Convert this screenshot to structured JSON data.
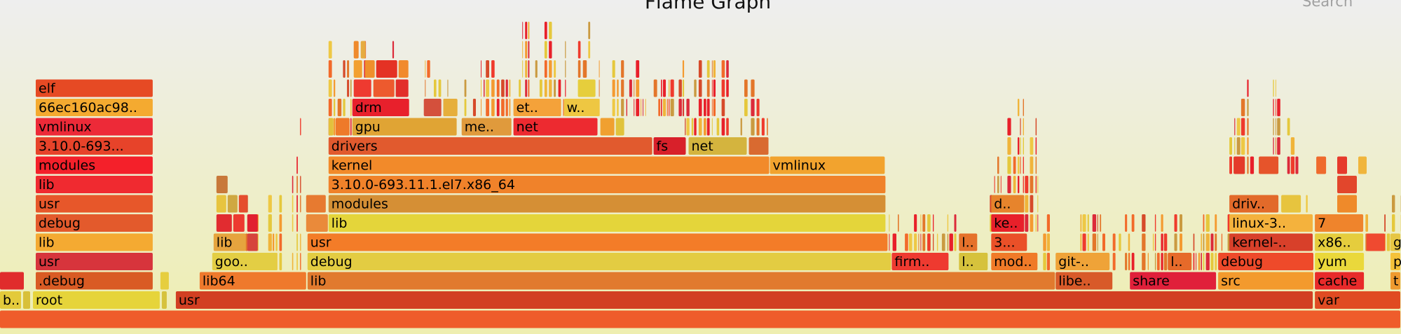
{
  "title": "Flame Graph",
  "search_label": "Search",
  "chart_data": {
    "type": "flamegraph",
    "note_units": "x and w are fractions of the total sample width; level 0 is the bottom frame",
    "frames": [
      {
        "l": 0,
        "x": 0.0,
        "w": 1.0,
        "n": "",
        "c": "#ef5c2b"
      },
      {
        "l": 1,
        "x": 0.0,
        "w": 0.0155,
        "n": "b..",
        "c": "#e3ca3b"
      },
      {
        "l": 1,
        "x": 0.0165,
        "w": 0.0055,
        "n": "",
        "c": "#d8c03a"
      },
      {
        "l": 1,
        "x": 0.0235,
        "w": 0.091,
        "n": "root",
        "c": "#e6d43a"
      },
      {
        "l": 1,
        "x": 0.1155,
        "w": 0.004,
        "n": "",
        "c": "#d6c23c"
      },
      {
        "l": 1,
        "x": 0.1255,
        "w": 0.812,
        "n": "usr",
        "c": "#d23f22"
      },
      {
        "l": 1,
        "x": 0.9385,
        "w": 0.0615,
        "n": "var",
        "c": "#e04b22"
      },
      {
        "l": 2,
        "x": 0.0,
        "w": 0.0175,
        "n": "",
        "c": "#e02c2c"
      },
      {
        "l": 2,
        "x": 0.0255,
        "w": 0.084,
        "n": ".debug",
        "c": "#d95b24"
      },
      {
        "l": 2,
        "x": 0.1145,
        "w": 0.0065,
        "n": "",
        "c": "#e6ce3f"
      },
      {
        "l": 2,
        "x": 0.1425,
        "w": 0.0765,
        "n": "lib64",
        "c": "#ef792c"
      },
      {
        "l": 2,
        "x": 0.2195,
        "w": 0.534,
        "n": "lib",
        "c": "#e17a2e"
      },
      {
        "l": 2,
        "x": 0.7535,
        "w": 0.041,
        "n": "libe..",
        "c": "#d85a29"
      },
      {
        "l": 2,
        "x": 0.8065,
        "w": 0.062,
        "n": "share",
        "c": "#e0203a"
      },
      {
        "l": 2,
        "x": 0.8695,
        "w": 0.0685,
        "n": "src",
        "c": "#f39a2d"
      },
      {
        "l": 2,
        "x": 0.9385,
        "w": 0.0355,
        "n": "cache",
        "c": "#e82a2a"
      },
      {
        "l": 2,
        "x": 0.9925,
        "w": 0.0075,
        "n": "t",
        "c": "#ef9a2f"
      },
      {
        "l": 3,
        "x": 0.0255,
        "w": 0.084,
        "n": "usr",
        "c": "#d7343c"
      },
      {
        "l": 3,
        "x": 0.1515,
        "w": 0.0465,
        "n": "goo..",
        "c": "#e3ce44"
      },
      {
        "l": 3,
        "x": 0.2195,
        "w": 0.417,
        "n": "debug",
        "c": "#e3cc42"
      },
      {
        "l": 3,
        "x": 0.6365,
        "w": 0.041,
        "n": "firm..",
        "c": "#ee3a30"
      },
      {
        "l": 3,
        "x": 0.6845,
        "w": 0.021,
        "n": "l..",
        "c": "#d6c23c"
      },
      {
        "l": 3,
        "x": 0.7075,
        "w": 0.0335,
        "n": "mod..",
        "c": "#f07a28"
      },
      {
        "l": 3,
        "x": 0.7535,
        "w": 0.039,
        "n": "git-..",
        "c": "#efa338"
      },
      {
        "l": 3,
        "x": 0.8335,
        "w": 0.0175,
        "n": "l..",
        "c": "#e66a2a"
      },
      {
        "l": 3,
        "x": 0.8695,
        "w": 0.0685,
        "n": "debug",
        "c": "#ee4a2a"
      },
      {
        "l": 3,
        "x": 0.9385,
        "w": 0.0355,
        "n": "yum",
        "c": "#ead83b"
      },
      {
        "l": 3,
        "x": 0.9925,
        "w": 0.0075,
        "n": "p",
        "c": "#f5c23a"
      },
      {
        "l": 4,
        "x": 0.0255,
        "w": 0.084,
        "n": "lib",
        "c": "#f4aa32"
      },
      {
        "l": 4,
        "x": 0.1525,
        "w": 0.0235,
        "n": "lib",
        "c": "#e6a43e"
      },
      {
        "l": 4,
        "x": 0.1765,
        "w": 0.008,
        "n": "",
        "c": "#d6443c"
      },
      {
        "l": 4,
        "x": 0.2195,
        "w": 0.4145,
        "n": "usr",
        "c": "#f37c28"
      },
      {
        "l": 4,
        "x": 0.6845,
        "w": 0.0135,
        "n": "l..",
        "c": "#e5712b"
      },
      {
        "l": 4,
        "x": 0.7075,
        "w": 0.026,
        "n": "3...",
        "c": "#ea5028"
      },
      {
        "l": 4,
        "x": 0.8775,
        "w": 0.06,
        "n": "kernel-..",
        "c": "#d8402a"
      },
      {
        "l": 4,
        "x": 0.9385,
        "w": 0.035,
        "n": "x86..",
        "c": "#e5cd3d"
      },
      {
        "l": 4,
        "x": 0.9755,
        "w": 0.0135,
        "n": "",
        "c": "#ef4a30"
      },
      {
        "l": 4,
        "x": 0.9925,
        "w": 0.0075,
        "n": "g",
        "c": "#e6c644"
      },
      {
        "l": 5,
        "x": 0.0255,
        "w": 0.084,
        "n": "debug",
        "c": "#e35a2c"
      },
      {
        "l": 5,
        "x": 0.1545,
        "w": 0.0115,
        "n": "",
        "c": "#e12c30"
      },
      {
        "l": 5,
        "x": 0.1665,
        "w": 0.0085,
        "n": "",
        "c": "#ed3a30"
      },
      {
        "l": 5,
        "x": 0.1765,
        "w": 0.008,
        "n": "",
        "c": "#e12030"
      },
      {
        "l": 5,
        "x": 0.2185,
        "w": 0.016,
        "n": "",
        "c": "#ea8a3a"
      },
      {
        "l": 5,
        "x": 0.2345,
        "w": 0.398,
        "n": "lib",
        "c": "#e4d53a"
      },
      {
        "l": 5,
        "x": 0.7075,
        "w": 0.024,
        "n": "ke..",
        "c": "#e8202a"
      },
      {
        "l": 5,
        "x": 0.8775,
        "w": 0.06,
        "n": "linux-3..",
        "c": "#f4b23d"
      },
      {
        "l": 5,
        "x": 0.9385,
        "w": 0.035,
        "n": "7",
        "c": "#ef842c"
      },
      {
        "l": 6,
        "x": 0.0255,
        "w": 0.084,
        "n": "usr",
        "c": "#e7572a"
      },
      {
        "l": 6,
        "x": 0.1545,
        "w": 0.0075,
        "n": "",
        "c": "#e7c43f"
      },
      {
        "l": 6,
        "x": 0.1625,
        "w": 0.0075,
        "n": "",
        "c": "#cfa841"
      },
      {
        "l": 6,
        "x": 0.1705,
        "w": 0.0065,
        "n": "",
        "c": "#e54d2d"
      },
      {
        "l": 6,
        "x": 0.2185,
        "w": 0.0145,
        "n": "",
        "c": "#e77a30"
      },
      {
        "l": 6,
        "x": 0.2345,
        "w": 0.398,
        "n": "modules",
        "c": "#d58f35"
      },
      {
        "l": 6,
        "x": 0.7075,
        "w": 0.024,
        "n": "d..",
        "c": "#e7842c"
      },
      {
        "l": 6,
        "x": 0.8775,
        "w": 0.0355,
        "n": "driv..",
        "c": "#e26a2a"
      },
      {
        "l": 6,
        "x": 0.9145,
        "w": 0.0145,
        "n": "",
        "c": "#e7c43e"
      },
      {
        "l": 6,
        "x": 0.9545,
        "w": 0.0145,
        "n": "",
        "c": "#ef8a2a"
      },
      {
        "l": 7,
        "x": 0.0255,
        "w": 0.084,
        "n": "lib",
        "c": "#f02a30"
      },
      {
        "l": 7,
        "x": 0.1545,
        "w": 0.0085,
        "n": "",
        "c": "#c8783a"
      },
      {
        "l": 7,
        "x": 0.2345,
        "w": 0.398,
        "n": "3.10.0-693.11.1.el7.x86_64",
        "c": "#f0822a"
      },
      {
        "l": 7,
        "x": 0.9545,
        "w": 0.0145,
        "n": "",
        "c": "#e2462c"
      },
      {
        "l": 8,
        "x": 0.0255,
        "w": 0.084,
        "n": "modules",
        "c": "#f4202a"
      },
      {
        "l": 8,
        "x": 0.2345,
        "w": 0.315,
        "n": "kernel",
        "c": "#f28a2a"
      },
      {
        "l": 8,
        "x": 0.5495,
        "w": 0.0825,
        "n": "vmlinux",
        "c": "#f2a32e"
      },
      {
        "l": 8,
        "x": 0.8805,
        "w": 0.0085,
        "n": "",
        "c": "#e43a2a"
      },
      {
        "l": 8,
        "x": 0.8985,
        "w": 0.0145,
        "n": "",
        "c": "#e6542b"
      },
      {
        "l": 8,
        "x": 0.9395,
        "w": 0.0075,
        "n": "",
        "c": "#ef6a2d"
      },
      {
        "l": 8,
        "x": 0.9545,
        "w": 0.0075,
        "n": "",
        "c": "#e63a2c"
      },
      {
        "l": 8,
        "x": 0.9695,
        "w": 0.0065,
        "n": "",
        "c": "#f0b53c"
      },
      {
        "l": 9,
        "x": 0.0255,
        "w": 0.084,
        "n": "3.10.0-693...",
        "c": "#e7432a"
      },
      {
        "l": 9,
        "x": 0.2345,
        "w": 0.2315,
        "n": "drivers",
        "c": "#e15a2e"
      },
      {
        "l": 9,
        "x": 0.4665,
        "w": 0.0235,
        "n": "fs",
        "c": "#d8202a"
      },
      {
        "l": 9,
        "x": 0.4915,
        "w": 0.042,
        "n": "net",
        "c": "#d4b43e"
      },
      {
        "l": 9,
        "x": 0.5345,
        "w": 0.0145,
        "n": "",
        "c": "#d96a30"
      },
      {
        "l": 10,
        "x": 0.0255,
        "w": 0.084,
        "n": "vmlinux",
        "c": "#ed2a38"
      },
      {
        "l": 10,
        "x": 0.2345,
        "w": 0.004,
        "n": "",
        "c": "#e3c03c"
      },
      {
        "l": 10,
        "x": 0.2395,
        "w": 0.0105,
        "n": "",
        "c": "#ee7a2a"
      },
      {
        "l": 10,
        "x": 0.2515,
        "w": 0.075,
        "n": "gpu",
        "c": "#e0a434"
      },
      {
        "l": 10,
        "x": 0.3295,
        "w": 0.036,
        "n": "me..",
        "c": "#e09a3c"
      },
      {
        "l": 10,
        "x": 0.3665,
        "w": 0.0605,
        "n": "net",
        "c": "#ed2a30"
      },
      {
        "l": 10,
        "x": 0.4285,
        "w": 0.0105,
        "n": "",
        "c": "#f0a030"
      },
      {
        "l": 10,
        "x": 0.4395,
        "w": 0.0065,
        "n": "",
        "c": "#e0c33c"
      },
      {
        "l": 11,
        "x": 0.0255,
        "w": 0.084,
        "n": "66ec160ac98..",
        "c": "#f4aa30"
      },
      {
        "l": 11,
        "x": 0.2515,
        "w": 0.041,
        "n": "drm",
        "c": "#e8202c"
      },
      {
        "l": 11,
        "x": 0.3025,
        "w": 0.013,
        "n": "",
        "c": "#d4503c"
      },
      {
        "l": 11,
        "x": 0.3165,
        "w": 0.0105,
        "n": "",
        "c": "#e6af3b"
      },
      {
        "l": 11,
        "x": 0.3665,
        "w": 0.0345,
        "n": "et..",
        "c": "#f4a23a"
      },
      {
        "l": 11,
        "x": 0.4025,
        "w": 0.026,
        "n": "w..",
        "c": "#eec742"
      },
      {
        "l": 12,
        "x": 0.0255,
        "w": 0.084,
        "n": "elf",
        "c": "#e64a24"
      },
      {
        "l": 12,
        "x": 0.2525,
        "w": 0.013,
        "n": "",
        "c": "#ee3a30"
      },
      {
        "l": 12,
        "x": 0.2665,
        "w": 0.0155,
        "n": "",
        "c": "#ed5a2e"
      },
      {
        "l": 12,
        "x": 0.2825,
        "w": 0.0095,
        "n": "",
        "c": "#e22e2a"
      },
      {
        "l": 12,
        "x": 0.4125,
        "w": 0.013,
        "n": "",
        "c": "#e6ce3c"
      },
      {
        "l": 13,
        "x": 0.2525,
        "w": 0.0065,
        "n": "",
        "c": "#f2a030"
      },
      {
        "l": 13,
        "x": 0.2605,
        "w": 0.0075,
        "n": "",
        "c": "#ef8f2c"
      },
      {
        "l": 13,
        "x": 0.2685,
        "w": 0.0155,
        "n": "",
        "c": "#e43224"
      },
      {
        "l": 13,
        "x": 0.2845,
        "w": 0.0075,
        "n": "",
        "c": "#f18a2c"
      },
      {
        "l": 14,
        "x": 0.2525,
        "w": 0.004,
        "n": "",
        "c": "#ef8a2c"
      },
      {
        "l": 14,
        "x": 0.2575,
        "w": 0.004,
        "n": "",
        "c": "#e6ac40"
      }
    ],
    "slivers": [
      {
        "a": 0.1735,
        "b": 0.1855,
        "lo": 3,
        "hi": 7
      },
      {
        "a": 0.1895,
        "b": 0.2165,
        "lo": 2,
        "hi": 11
      },
      {
        "a": 0.2345,
        "b": 0.3075,
        "lo": 10,
        "hi": 15
      },
      {
        "a": 0.3075,
        "b": 0.3415,
        "lo": 10,
        "hi": 13
      },
      {
        "a": 0.3415,
        "b": 0.3685,
        "lo": 10,
        "hi": 14
      },
      {
        "a": 0.3685,
        "b": 0.4275,
        "lo": 11,
        "hi": 16
      },
      {
        "a": 0.4275,
        "b": 0.4875,
        "lo": 11,
        "hi": 14
      },
      {
        "a": 0.4875,
        "b": 0.5495,
        "lo": 10,
        "hi": 14
      },
      {
        "a": 0.6345,
        "b": 0.6825,
        "lo": 4,
        "hi": 6
      },
      {
        "a": 0.6995,
        "b": 0.7055,
        "lo": 2,
        "hi": 5
      },
      {
        "a": 0.7065,
        "b": 0.7445,
        "lo": 5,
        "hi": 12
      },
      {
        "a": 0.7445,
        "b": 0.8055,
        "lo": 3,
        "hi": 6
      },
      {
        "a": 0.8055,
        "b": 0.8775,
        "lo": 3,
        "hi": 6
      },
      {
        "a": 0.8775,
        "b": 0.9265,
        "lo": 8,
        "hi": 13
      },
      {
        "a": 0.9265,
        "b": 0.9385,
        "lo": 4,
        "hi": 7
      },
      {
        "a": 0.9725,
        "b": 0.9935,
        "lo": 4,
        "hi": 6
      },
      {
        "a": 0.9935,
        "b": 1.0,
        "lo": 5,
        "hi": 9
      }
    ],
    "palette": [
      "#e8202a",
      "#ef3a2c",
      "#f26a2a",
      "#f49a30",
      "#e5c83c",
      "#d64a2a",
      "#f0b43a",
      "#e3762a",
      "#dc2a3a",
      "#eec844",
      "#ca9a40"
    ]
  }
}
